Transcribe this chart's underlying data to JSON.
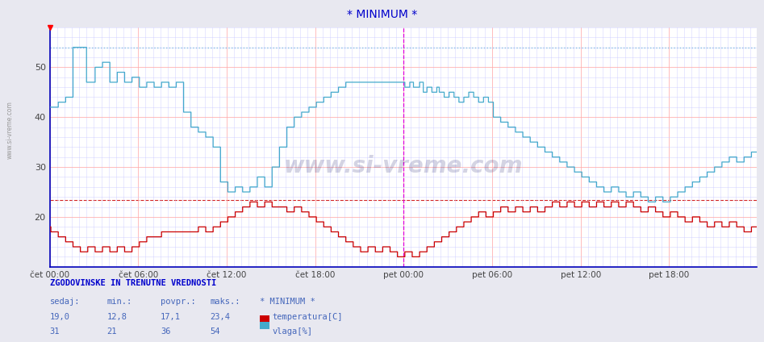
{
  "title": "* MINIMUM *",
  "title_color": "#0000cc",
  "bg_color": "#e8e8f0",
  "plot_bg_color": "#ffffff",
  "grid_color_major": "#ffaaaa",
  "grid_color_minor": "#ccccff",
  "ylim": [
    10,
    58
  ],
  "yticks": [
    20,
    30,
    40,
    50
  ],
  "x_labels": [
    "čet 00:00",
    "čet 06:00",
    "čet 12:00",
    "čet 18:00",
    "pet 00:00",
    "pet 06:00",
    "pet 12:00",
    "pet 18:00"
  ],
  "temp_color": "#cc0000",
  "vlaga_color": "#44aacc",
  "temp_max_hline": 23.4,
  "vlaga_max_hline": 54,
  "midnight_vline_color": "#dd00dd",
  "watermark_text": "www.si-vreme.com",
  "legend_temp_label": "temperatura[C]",
  "legend_vlaga_label": "vlaga[%]",
  "table_header": "ZGODOVINSKE IN TRENUTNE VREDNOSTI",
  "table_col_headers": [
    "sedaj:",
    "min.:",
    "povpr.:",
    "maks.:",
    "* MINIMUM *"
  ],
  "table_temp_values": [
    "19,0",
    "12,8",
    "17,1",
    "23,4"
  ],
  "table_vlaga_values": [
    "31",
    "21",
    "36",
    "54"
  ],
  "n_points": 576
}
